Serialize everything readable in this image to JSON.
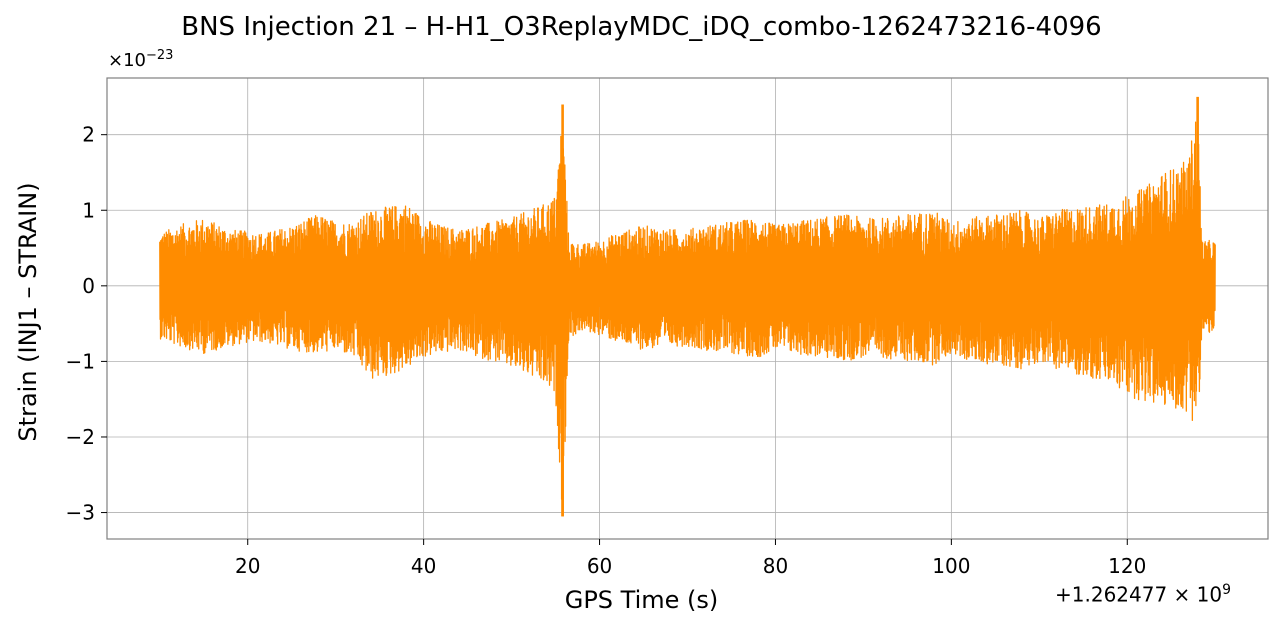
{
  "chart_data": {
    "type": "line",
    "title": "BNS Injection 21 – H-H1_O3ReplayMDC_iDQ_combo-1262473216-4096",
    "xlabel": "GPS Time (s)",
    "ylabel": "Strain (INJ1 – STRAIN)",
    "y_scale_prefix": "×10",
    "y_scale_exponent": "−23",
    "x_offset_prefix": "+1.262477 × 10",
    "x_offset_exponent": "9",
    "xlim": [
      4,
      136
    ],
    "ylim": [
      -3.35,
      2.75
    ],
    "x_ticks": [
      20,
      40,
      60,
      80,
      100,
      120
    ],
    "x_tick_labels": [
      "20",
      "40",
      "60",
      "80",
      "100",
      "120"
    ],
    "y_ticks": [
      -3,
      -2,
      -1,
      0,
      1,
      2
    ],
    "y_tick_labels": [
      "−3",
      "−2",
      "−1",
      "0",
      "1",
      "2"
    ],
    "grid": true,
    "series": [
      {
        "color": "#ff8c00",
        "envelope": {
          "x": [
            10,
            12,
            15,
            18,
            20,
            22,
            25,
            28,
            30,
            32,
            34,
            36,
            38,
            40,
            42,
            44,
            46,
            48,
            50,
            52,
            54,
            55,
            55.8,
            56.5,
            58,
            60,
            62,
            65,
            68,
            70,
            72,
            75,
            78,
            80,
            82,
            85,
            88,
            90,
            92,
            95,
            98,
            100,
            102,
            105,
            108,
            110,
            112,
            115,
            118,
            120,
            122,
            124,
            126,
            127,
            128,
            128.5,
            129,
            130
          ],
          "upper": [
            0.7,
            0.8,
            0.9,
            0.75,
            0.72,
            0.7,
            0.8,
            0.95,
            0.85,
            0.85,
            1.0,
            1.05,
            1.1,
            0.9,
            0.8,
            0.75,
            0.8,
            0.85,
            0.9,
            1.0,
            1.1,
            1.2,
            2.4,
            0.6,
            0.55,
            0.6,
            0.7,
            0.8,
            0.75,
            0.75,
            0.8,
            0.85,
            0.9,
            0.8,
            0.85,
            0.9,
            0.95,
            0.9,
            0.9,
            0.95,
            1.0,
            0.85,
            0.9,
            0.95,
            1.0,
            0.9,
            1.0,
            1.05,
            1.1,
            1.2,
            1.3,
            1.5,
            1.6,
            1.7,
            2.5,
            0.6,
            0.6,
            0.6
          ],
          "lower": [
            -0.7,
            -0.8,
            -0.9,
            -0.8,
            -0.75,
            -0.75,
            -0.85,
            -0.9,
            -0.85,
            -0.95,
            -1.25,
            -1.2,
            -1.1,
            -0.95,
            -0.9,
            -0.85,
            -0.95,
            -1.0,
            -1.1,
            -1.2,
            -1.35,
            -1.5,
            -3.05,
            -0.7,
            -0.6,
            -0.65,
            -0.75,
            -0.85,
            -0.8,
            -0.8,
            -0.85,
            -0.9,
            -0.95,
            -0.85,
            -0.9,
            -0.95,
            -1.0,
            -0.95,
            -0.95,
            -1.0,
            -1.05,
            -0.9,
            -1.0,
            -1.05,
            -1.1,
            -1.0,
            -1.1,
            -1.2,
            -1.3,
            -1.45,
            -1.55,
            -1.6,
            -1.65,
            -1.7,
            -1.9,
            -0.65,
            -0.65,
            -0.6
          ]
        }
      }
    ]
  }
}
